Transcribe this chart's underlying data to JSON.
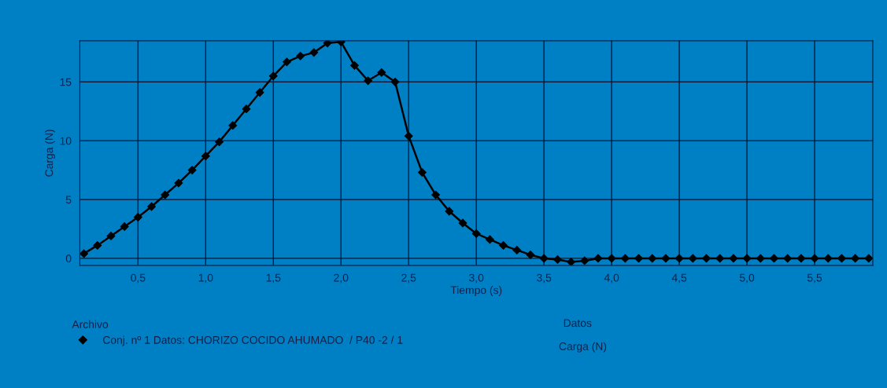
{
  "chart_data": {
    "type": "line",
    "xlabel": "Tiempo (s)",
    "ylabel": "Carga (N)",
    "legend_title": "Archivo",
    "x": [
      0.1,
      0.2,
      0.3,
      0.4,
      0.5,
      0.6,
      0.7,
      0.8,
      0.9,
      1.0,
      1.1,
      1.2,
      1.3,
      1.4,
      1.5,
      1.6,
      1.7,
      1.8,
      1.9,
      2.0,
      2.1,
      2.2,
      2.3,
      2.4,
      2.5,
      2.6,
      2.7,
      2.8,
      2.9,
      3.0,
      3.1,
      3.2,
      3.3,
      3.4,
      3.5,
      3.6,
      3.7,
      3.8,
      3.9,
      4.0,
      4.1,
      4.2,
      4.3,
      4.4,
      4.5,
      4.6,
      4.7,
      4.8,
      4.9,
      5.0,
      5.1,
      5.2,
      5.3,
      5.4,
      5.5,
      5.6,
      5.7,
      5.8,
      5.9
    ],
    "series": [
      {
        "name": "Conj. nº 1 Datos: CHORIZO COCIDO AHUMADO  / P40 -2 / 1",
        "color": "#000000",
        "values": [
          0.4,
          1.1,
          1.9,
          2.7,
          3.5,
          4.4,
          5.4,
          6.4,
          7.5,
          8.7,
          9.9,
          11.3,
          12.7,
          14.1,
          15.5,
          16.7,
          17.2,
          17.5,
          18.3,
          18.4,
          16.4,
          15.1,
          15.8,
          15.0,
          10.4,
          7.3,
          5.4,
          4.0,
          3.0,
          2.1,
          1.6,
          1.1,
          0.7,
          0.3,
          0.0,
          -0.1,
          -0.3,
          -0.2,
          0.0,
          0.0,
          0.0,
          0.0,
          0.0,
          0.0,
          0.0,
          0.0,
          0.0,
          0.0,
          0.0,
          0.0,
          0.0,
          0.0,
          0.0,
          0.0,
          0.0,
          0.0,
          0.0,
          0.0,
          0.0
        ]
      }
    ],
    "annotations": [
      "Datos",
      "Carga (N)"
    ],
    "xlim": [
      0.07,
      5.93
    ],
    "ylim": [
      -0.6,
      18.5
    ],
    "xticks": [
      {
        "value": 0.5,
        "label": "0,5"
      },
      {
        "value": 1.0,
        "label": "1,0"
      },
      {
        "value": 1.5,
        "label": "1,5"
      },
      {
        "value": 2.0,
        "label": "2,0"
      },
      {
        "value": 2.5,
        "label": "2,5"
      },
      {
        "value": 3.0,
        "label": "3,0"
      },
      {
        "value": 3.5,
        "label": "3,5"
      },
      {
        "value": 4.0,
        "label": "4,0"
      },
      {
        "value": 4.5,
        "label": "4,5"
      },
      {
        "value": 5.0,
        "label": "5,0"
      },
      {
        "value": 5.5,
        "label": "5,5"
      }
    ],
    "yticks": [
      0,
      5,
      10,
      15
    ],
    "grid": true,
    "legend": "bottom left",
    "marker": "diamond",
    "line_style": "solid"
  }
}
